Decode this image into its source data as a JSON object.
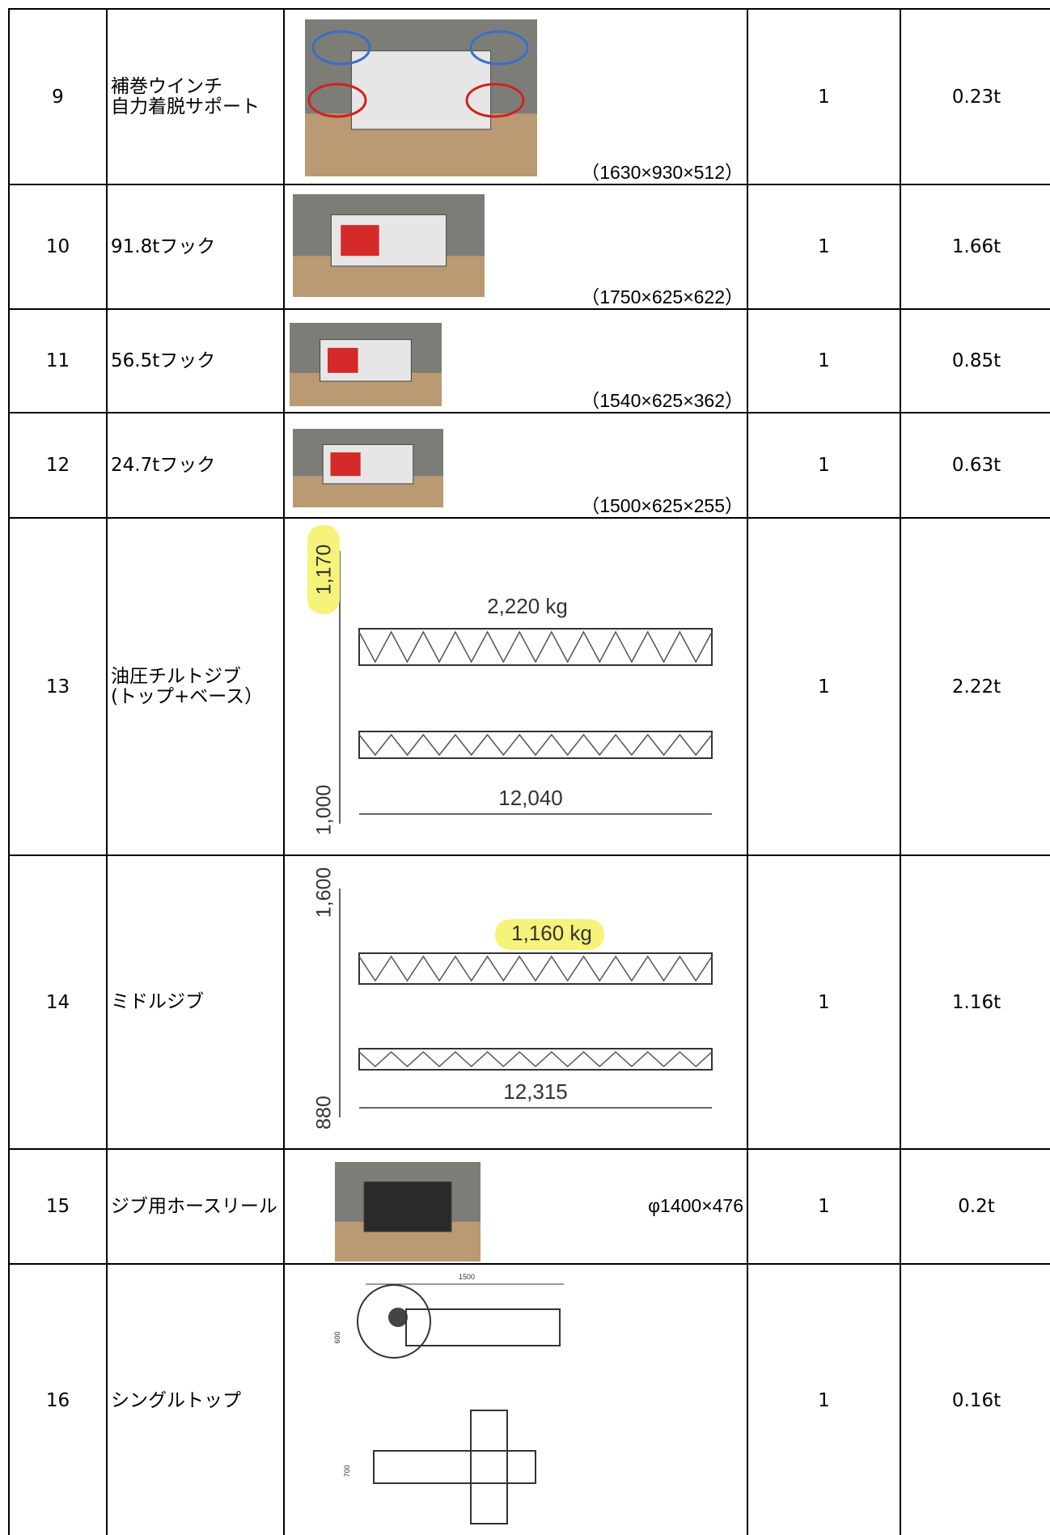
{
  "table": {
    "rows": [
      {
        "no": "9",
        "name": "補巻ウインチ\n自力着脱サポート",
        "dims": "（1630×930×512）",
        "qty": "1",
        "weight": "0.23t"
      },
      {
        "no": "10",
        "name": "91.8tフック",
        "dims": "（1750×625×622）",
        "qty": "1",
        "weight": "1.66t"
      },
      {
        "no": "11",
        "name": "56.5tフック",
        "dims": "（1540×625×362）",
        "qty": "1",
        "weight": "0.85t"
      },
      {
        "no": "12",
        "name": "24.7tフック",
        "dims": "（1500×625×255）",
        "qty": "1",
        "weight": "0.63t"
      },
      {
        "no": "13",
        "name": "油圧チルトジブ\n(トップ+ベース）",
        "drawing": {
          "height_top": "1,170",
          "weight": "2,220 kg",
          "length": "12,040",
          "height_bottom": "1,000"
        },
        "qty": "1",
        "weight": "2.22t"
      },
      {
        "no": "14",
        "name": "ミドルジブ",
        "drawing": {
          "height_top": "1,600",
          "weight": "1,160 kg",
          "length": "12,315",
          "height_bottom": "880"
        },
        "qty": "1",
        "weight": "1.16t"
      },
      {
        "no": "15",
        "name": "ジブ用ホースリール",
        "dims": "φ1400×476",
        "qty": "1",
        "weight": "0.2t"
      },
      {
        "no": "16",
        "name": "シングルトップ",
        "drawing": {
          "length": "1500",
          "height_top": "600",
          "height_bottom": "700"
        },
        "qty": "1",
        "weight": "0.16t"
      }
    ]
  }
}
